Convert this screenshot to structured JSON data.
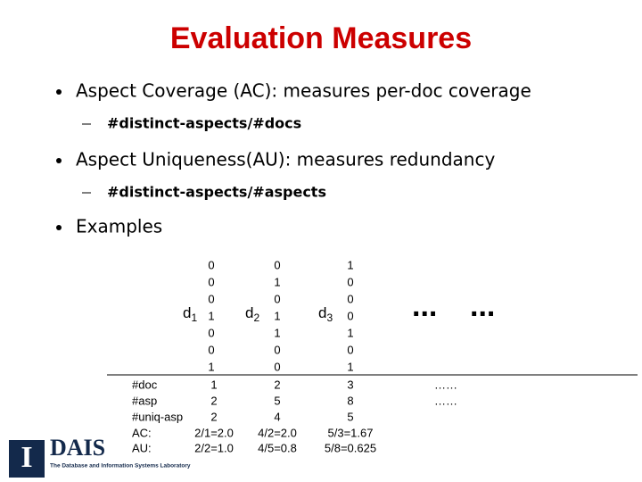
{
  "title": "Evaluation Measures",
  "bullets": [
    {
      "text": "Aspect Coverage (AC): measures per-doc coverage",
      "sub": "#distinct-aspects/#docs"
    },
    {
      "text": "Aspect Uniqueness(AU): measures redundancy",
      "sub": "#distinct-aspects/#aspects"
    },
    {
      "text": "Examples"
    }
  ],
  "docs": [
    {
      "name": "d",
      "sub": "1",
      "vector": [
        "0",
        "0",
        "0",
        "1",
        "0",
        "0",
        "1"
      ]
    },
    {
      "name": "d",
      "sub": "2",
      "vector": [
        "0",
        "1",
        "0",
        "1",
        "1",
        "0",
        "0"
      ]
    },
    {
      "name": "d",
      "sub": "3",
      "vector": [
        "1",
        "0",
        "0",
        "0",
        "1",
        "0",
        "1"
      ]
    }
  ],
  "ellipses": [
    "...",
    "..."
  ],
  "table": {
    "row_labels": [
      "#doc",
      "#asp",
      "#uniq-asp",
      "AC:",
      "AU:"
    ],
    "columns": [
      [
        "1",
        "2",
        "2",
        "2/1=2.0",
        "2/2=1.0"
      ],
      [
        "2",
        "5",
        "4",
        "4/2=2.0",
        "4/5=0.8"
      ],
      [
        "3",
        "8",
        "5",
        "5/3=1.67",
        "5/8=0.625"
      ],
      [
        "……",
        "……"
      ]
    ]
  },
  "logo": {
    "letter": "I",
    "name": "DAIS",
    "caption": "The Database and Information Systems Laboratory"
  }
}
